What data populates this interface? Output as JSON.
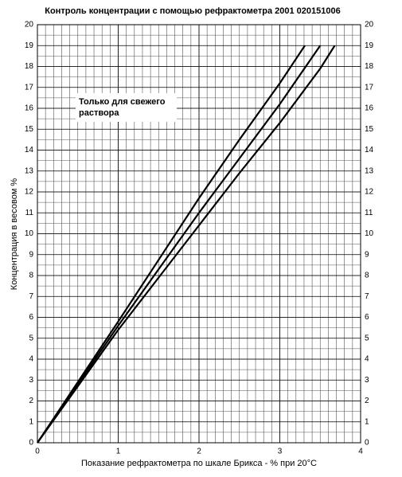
{
  "chart_data": {
    "type": "line",
    "title": "Контроль концентрации с помощью рефрактометра 2001 020151006",
    "xlabel": "Показание рефрактометра по шкале Брикса - % при 20°C",
    "ylabel": "Концентрация в весовом %",
    "annotation": [
      "Только для свежего",
      "раствора"
    ],
    "series": [
      {
        "color": "#000000",
        "x": [
          0,
          0.5,
          1,
          1.5,
          2,
          2.5,
          3,
          3.31
        ],
        "values": [
          0,
          2.9,
          5.8,
          8.75,
          11.7,
          14.5,
          17.2,
          19
        ]
      },
      {
        "color": "#000000",
        "x": [
          0,
          0.5,
          1,
          1.5,
          2,
          2.5,
          3,
          3.5
        ],
        "values": [
          0,
          2.8,
          5.6,
          8.3,
          11.0,
          13.6,
          16.2,
          19
        ]
      },
      {
        "color": "#000000",
        "x": [
          0,
          0.5,
          1,
          1.5,
          2,
          2.5,
          3,
          3.5,
          3.68
        ],
        "values": [
          0,
          2.7,
          5.4,
          7.9,
          10.4,
          12.9,
          15.3,
          17.9,
          19
        ]
      }
    ],
    "xlim": [
      0,
      4
    ],
    "xticks": [
      0,
      1,
      2,
      3,
      4
    ],
    "ylim": [
      0,
      20
    ],
    "yticks": [
      0,
      1,
      2,
      3,
      4,
      5,
      6,
      7,
      8,
      9,
      10,
      11,
      12,
      13,
      14,
      15,
      16,
      17,
      18,
      19,
      20
    ],
    "grid": true,
    "xminor_step": 0.1,
    "yminor_step": 0.5
  }
}
